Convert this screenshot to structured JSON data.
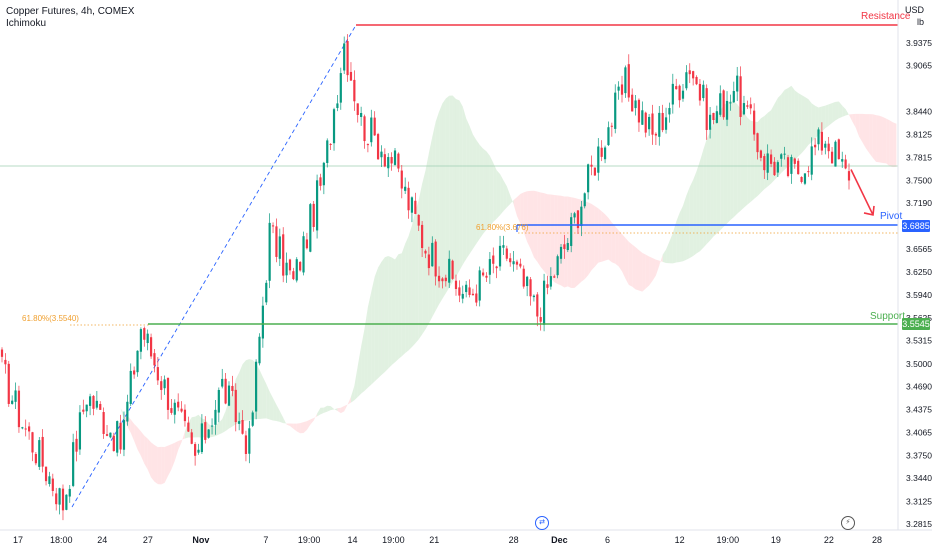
{
  "header": {
    "title": "Copper Futures, 4h, COMEX",
    "indicator": "Ichimoku"
  },
  "axis_units": {
    "currency": "USD",
    "unit": "lb"
  },
  "levels": {
    "resistance": {
      "label": "Resistance",
      "price": 3.9537,
      "color": "#f23645"
    },
    "pivot": {
      "label": "Pivot",
      "price": "3.6885",
      "value": 3.6885,
      "color": "#2962ff"
    },
    "support": {
      "label": "Support",
      "price": "3.5545",
      "value": 3.5545,
      "color": "#4caf50"
    }
  },
  "fib_labels": {
    "left": "61.80%(3.5540)",
    "right": "61.80%(3.676)"
  },
  "colors": {
    "up": "#26a69a",
    "up_alt": "#089981",
    "down": "#f23645",
    "cloud_green": "#c8e6c9",
    "cloud_red": "#ffcdd2",
    "trend_line": "#2962ff",
    "fib_dotted": "#f0a030",
    "current_price_line": "#9fcfb2"
  },
  "icons": {
    "timeframe_icon": "arrows-icon",
    "flash_icon": "lightning-icon"
  },
  "chart_data": {
    "type": "candlestick",
    "title": "Copper Futures, 4h, COMEX",
    "ylabel": "USD / lb",
    "y_ticks": [
      3.9375,
      3.9065,
      3.844,
      3.8125,
      3.7815,
      3.75,
      3.719,
      3.6565,
      3.625,
      3.594,
      3.5625,
      3.5315,
      3.5,
      3.469,
      3.4375,
      3.4065,
      3.375,
      3.344,
      3.3125,
      3.2815
    ],
    "ylim": [
      3.275,
      3.97
    ],
    "x_tick_labels": [
      "17",
      "18:00",
      "24",
      "27",
      "Nov",
      "7",
      "19:00",
      "14",
      "19:00",
      "21",
      "28",
      "Dec",
      "6",
      "12",
      "19:00",
      "19",
      "22",
      "28"
    ],
    "path_waypoints": [
      {
        "bar": 0,
        "price": 3.49
      },
      {
        "bar": 6,
        "price": 3.42
      },
      {
        "bar": 18,
        "price": 3.31
      },
      {
        "bar": 25,
        "price": 3.46
      },
      {
        "bar": 35,
        "price": 3.39
      },
      {
        "bar": 41,
        "price": 3.55
      },
      {
        "bar": 47,
        "price": 3.48
      },
      {
        "bar": 57,
        "price": 3.37
      },
      {
        "bar": 65,
        "price": 3.47
      },
      {
        "bar": 73,
        "price": 3.39
      },
      {
        "bar": 79,
        "price": 3.68
      },
      {
        "bar": 86,
        "price": 3.61
      },
      {
        "bar": 95,
        "price": 3.76
      },
      {
        "bar": 101,
        "price": 3.94
      },
      {
        "bar": 106,
        "price": 3.83
      },
      {
        "bar": 115,
        "price": 3.78
      },
      {
        "bar": 125,
        "price": 3.66
      },
      {
        "bar": 137,
        "price": 3.59
      },
      {
        "bar": 149,
        "price": 3.65
      },
      {
        "bar": 158,
        "price": 3.57
      },
      {
        "bar": 167,
        "price": 3.67
      },
      {
        "bar": 176,
        "price": 3.79
      },
      {
        "bar": 184,
        "price": 3.88
      },
      {
        "bar": 192,
        "price": 3.81
      },
      {
        "bar": 203,
        "price": 3.91
      },
      {
        "bar": 209,
        "price": 3.83
      },
      {
        "bar": 216,
        "price": 3.88
      },
      {
        "bar": 225,
        "price": 3.78
      },
      {
        "bar": 234,
        "price": 3.76
      },
      {
        "bar": 243,
        "price": 3.81
      },
      {
        "bar": 250,
        "price": 3.75
      }
    ],
    "bars": 251,
    "projection": {
      "from_price": 3.765,
      "to_price": 3.703
    },
    "legend": "none",
    "grid": false
  }
}
